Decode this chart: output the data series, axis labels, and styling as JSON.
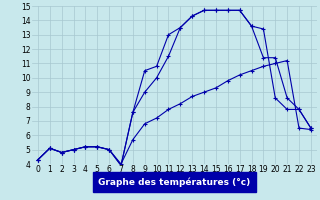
{
  "title": "Graphe des températures (°c)",
  "bg_color": "#c8e8ec",
  "line_color": "#0000aa",
  "grid_color": "#a8c8d0",
  "xlabel_bg": "#0000aa",
  "xlabel_fg": "#ffffff",
  "xlim": [
    -0.5,
    23.5
  ],
  "ylim": [
    4,
    15
  ],
  "xticks": [
    0,
    1,
    2,
    3,
    4,
    5,
    6,
    7,
    8,
    9,
    10,
    11,
    12,
    13,
    14,
    15,
    16,
    17,
    18,
    19,
    20,
    21,
    22,
    23
  ],
  "yticks": [
    4,
    5,
    6,
    7,
    8,
    9,
    10,
    11,
    12,
    13,
    14,
    15
  ],
  "line1_x": [
    0,
    1,
    2,
    3,
    4,
    5,
    6,
    7,
    8,
    9,
    10,
    11,
    12,
    13,
    14,
    15,
    16,
    17,
    18,
    19,
    20,
    21,
    22,
    23
  ],
  "line1_y": [
    4.3,
    5.1,
    4.8,
    5.0,
    5.2,
    5.2,
    5.0,
    4.0,
    5.7,
    6.8,
    7.2,
    7.8,
    8.2,
    8.7,
    9.0,
    9.3,
    9.8,
    10.2,
    10.5,
    10.8,
    11.0,
    11.2,
    6.5,
    6.4
  ],
  "line2_x": [
    0,
    1,
    2,
    3,
    4,
    5,
    6,
    7,
    8,
    9,
    10,
    11,
    12,
    13,
    14,
    15,
    16,
    17,
    18,
    19,
    20,
    21,
    22,
    23
  ],
  "line2_y": [
    4.3,
    5.1,
    4.8,
    5.0,
    5.2,
    5.2,
    5.0,
    3.9,
    7.6,
    10.5,
    10.8,
    13.0,
    13.5,
    14.3,
    14.7,
    14.7,
    14.7,
    14.7,
    13.6,
    13.4,
    8.6,
    7.8,
    7.8,
    6.5
  ],
  "line3_x": [
    0,
    1,
    2,
    3,
    4,
    5,
    6,
    7,
    8,
    9,
    10,
    11,
    12,
    13,
    14,
    15,
    16,
    17,
    18,
    19,
    20,
    21,
    22,
    23
  ],
  "line3_y": [
    4.3,
    5.1,
    4.8,
    5.0,
    5.2,
    5.2,
    5.0,
    3.9,
    7.6,
    9.0,
    10.0,
    11.5,
    13.5,
    14.3,
    14.7,
    14.7,
    14.7,
    14.7,
    13.6,
    11.4,
    11.4,
    8.6,
    7.8,
    6.5
  ],
  "tick_fontsize": 5.5,
  "xlabel_fontsize": 6.5
}
